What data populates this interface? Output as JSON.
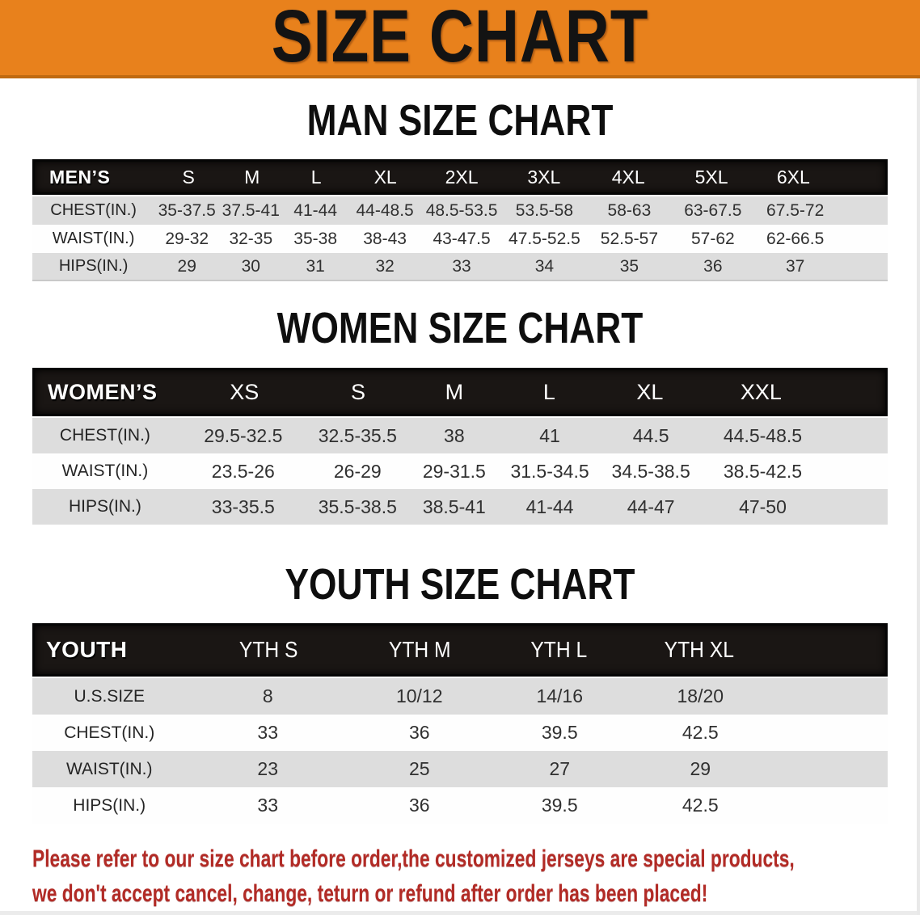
{
  "colors": {
    "banner_orange": "#E8811C",
    "band_black": "#1A1614",
    "row_gray": "#DDDDDD",
    "note_red": "#B22B26"
  },
  "banner": {
    "title": "SIZE CHART"
  },
  "sections": {
    "men": {
      "title": "MAN SIZE CHART",
      "header": [
        "MEN’S",
        "S",
        "M",
        "L",
        "XL",
        "2XL",
        "3XL",
        "4XL",
        "5XL",
        "6XL"
      ],
      "rows": [
        {
          "label": "CHEST(IN.)",
          "values": [
            "35-37.5",
            "37.5-41",
            "41-44",
            "44-48.5",
            "48.5-53.5",
            "53.5-58",
            "58-63",
            "63-67.5",
            "67.5-72"
          ]
        },
        {
          "label": "WAIST(IN.)",
          "values": [
            "29-32",
            "32-35",
            "35-38",
            "38-43",
            "43-47.5",
            "47.5-52.5",
            "52.5-57",
            "57-62",
            "62-66.5"
          ]
        },
        {
          "label": "HIPS(IN.)",
          "values": [
            "29",
            "30",
            "31",
            "32",
            "33",
            "34",
            "35",
            "36",
            "37"
          ]
        }
      ]
    },
    "women": {
      "title": "WOMEN SIZE CHART",
      "header": [
        "WOMEN’S",
        "XS",
        "S",
        "M",
        "L",
        "XL",
        "XXL"
      ],
      "rows": [
        {
          "label": "CHEST(IN.)",
          "values": [
            "29.5-32.5",
            "32.5-35.5",
            "38",
            "41",
            "44.5",
            "44.5-48.5"
          ]
        },
        {
          "label": "WAIST(IN.)",
          "values": [
            "23.5-26",
            "26-29",
            "29-31.5",
            "31.5-34.5",
            "34.5-38.5",
            "38.5-42.5"
          ]
        },
        {
          "label": "HIPS(IN.)",
          "values": [
            "33-35.5",
            "35.5-38.5",
            "38.5-41",
            "41-44",
            "44-47",
            "47-50"
          ]
        }
      ]
    },
    "youth": {
      "title": "YOUTH SIZE CHART",
      "header": [
        "YOUTH",
        "YTH S",
        "YTH M",
        "YTH L",
        "YTH XL"
      ],
      "rows": [
        {
          "label": "U.S.SIZE",
          "values": [
            "8",
            "10/12",
            "14/16",
            "18/20"
          ]
        },
        {
          "label": "CHEST(IN.)",
          "values": [
            "33",
            "36",
            "39.5",
            "42.5"
          ]
        },
        {
          "label": "WAIST(IN.)",
          "values": [
            "23",
            "25",
            "27",
            "29"
          ]
        },
        {
          "label": "HIPS(IN.)",
          "values": [
            "33",
            "36",
            "39.5",
            "42.5"
          ]
        }
      ]
    }
  },
  "footer": {
    "line1": "Please refer to our size chart before order,the customized jerseys are special products,",
    "line2": "we don't accept cancel, change, teturn or refund after order has been placed!"
  }
}
